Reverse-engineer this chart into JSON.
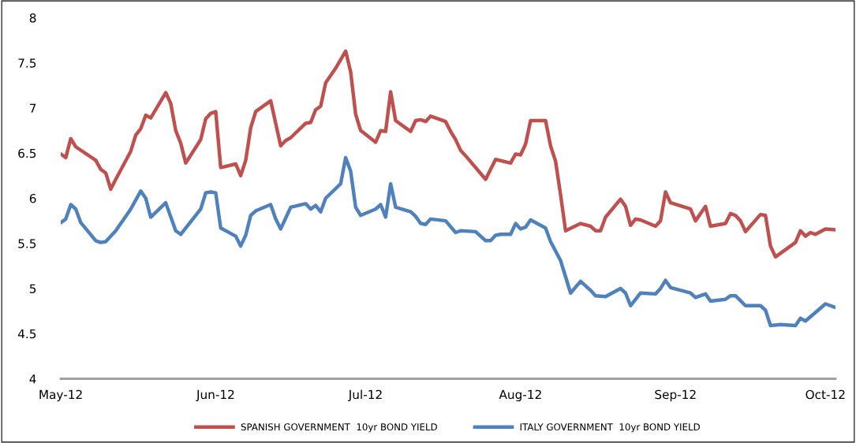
{
  "chart_data": {
    "type": "line",
    "ylim": [
      4,
      8
    ],
    "yticks": [
      4,
      4.5,
      5,
      5.5,
      6,
      6.5,
      7,
      7.5,
      8
    ],
    "xlim": [
      "2012-05-01",
      "2012-10-03"
    ],
    "xticks": [
      {
        "value": "2012-05-01",
        "label": "May-12"
      },
      {
        "value": "2012-06-01",
        "label": "Jun-12"
      },
      {
        "value": "2012-07-01",
        "label": "Jul-12"
      },
      {
        "value": "2012-08-01",
        "label": "Aug-12"
      },
      {
        "value": "2012-09-01",
        "label": "Sep-12"
      },
      {
        "value": "2012-10-01",
        "label": "Oct-12"
      }
    ],
    "grid": false,
    "legend": "bottom",
    "marker": "none",
    "line_style": "solid",
    "series": [
      {
        "name": "SPANISH GOVERNMENT  10yr BOND YIELD",
        "color": "#c0504d",
        "x": [
          "2012-05-01",
          "2012-05-02",
          "2012-05-03",
          "2012-05-04",
          "2012-05-08",
          "2012-05-09",
          "2012-05-10",
          "2012-05-11",
          "2012-05-12",
          "2012-05-15",
          "2012-05-16",
          "2012-05-17",
          "2012-05-18",
          "2012-05-19",
          "2012-05-22",
          "2012-05-23",
          "2012-05-24",
          "2012-05-25",
          "2012-05-26",
          "2012-05-29",
          "2012-05-30",
          "2012-05-31",
          "2012-06-01",
          "2012-06-02",
          "2012-06-05",
          "2012-06-06",
          "2012-06-07",
          "2012-06-08",
          "2012-06-09",
          "2012-06-12",
          "2012-06-14",
          "2012-06-15",
          "2012-06-16",
          "2012-06-19",
          "2012-06-20",
          "2012-06-21",
          "2012-06-22",
          "2012-06-23",
          "2012-06-25",
          "2012-06-27",
          "2012-06-28",
          "2012-06-29",
          "2012-06-30",
          "2012-07-03",
          "2012-07-04",
          "2012-07-05",
          "2012-07-06",
          "2012-07-07",
          "2012-07-10",
          "2012-07-11",
          "2012-07-12",
          "2012-07-13",
          "2012-07-14",
          "2012-07-17",
          "2012-07-18",
          "2012-07-19",
          "2012-07-20",
          "2012-07-21",
          "2012-07-25",
          "2012-07-27",
          "2012-07-30",
          "2012-07-31",
          "2012-08-01",
          "2012-08-02",
          "2012-08-03",
          "2012-08-06",
          "2012-08-07",
          "2012-08-08",
          "2012-08-09",
          "2012-08-10",
          "2012-08-13",
          "2012-08-15",
          "2012-08-16",
          "2012-08-17",
          "2012-08-18",
          "2012-08-21",
          "2012-08-22",
          "2012-08-23",
          "2012-08-24",
          "2012-08-25",
          "2012-08-28",
          "2012-08-29",
          "2012-08-30",
          "2012-08-31",
          "2012-09-04",
          "2012-09-05",
          "2012-09-07",
          "2012-09-08",
          "2012-09-11",
          "2012-09-12",
          "2012-09-13",
          "2012-09-14",
          "2012-09-15",
          "2012-09-18",
          "2012-09-19",
          "2012-09-20",
          "2012-09-21",
          "2012-09-25",
          "2012-09-26",
          "2012-09-27",
          "2012-09-28",
          "2012-09-29",
          "2012-10-01",
          "2012-10-03"
        ],
        "values": [
          6.49,
          6.45,
          6.66,
          6.57,
          6.42,
          6.32,
          6.28,
          6.1,
          6.21,
          6.52,
          6.7,
          6.77,
          6.92,
          6.89,
          7.17,
          7.05,
          6.75,
          6.61,
          6.39,
          6.65,
          6.88,
          6.94,
          6.96,
          6.34,
          6.38,
          6.25,
          6.42,
          6.78,
          6.96,
          7.08,
          6.58,
          6.64,
          6.67,
          6.83,
          6.84,
          6.98,
          7.02,
          7.28,
          7.44,
          7.63,
          7.4,
          6.93,
          6.75,
          6.62,
          6.75,
          6.74,
          7.18,
          6.86,
          6.74,
          6.86,
          6.87,
          6.85,
          6.91,
          6.85,
          6.74,
          6.65,
          6.53,
          6.47,
          6.21,
          6.43,
          6.39,
          6.49,
          6.48,
          6.6,
          6.86,
          6.86,
          6.58,
          6.41,
          6.04,
          5.64,
          5.72,
          5.69,
          5.64,
          5.64,
          5.79,
          5.99,
          5.91,
          5.7,
          5.77,
          5.76,
          5.69,
          5.75,
          6.07,
          5.95,
          5.88,
          5.75,
          5.91,
          5.69,
          5.72,
          5.83,
          5.81,
          5.75,
          5.63,
          5.82,
          5.81,
          5.47,
          5.35,
          5.51,
          5.64,
          5.58,
          5.62,
          5.6,
          5.66,
          5.65
        ]
      },
      {
        "name": "ITALY GOVERNMENT  10yr BOND YIELD",
        "color": "#4f81bd",
        "x": [
          "2012-05-01",
          "2012-05-02",
          "2012-05-03",
          "2012-05-04",
          "2012-05-05",
          "2012-05-08",
          "2012-05-09",
          "2012-05-10",
          "2012-05-12",
          "2012-05-15",
          "2012-05-17",
          "2012-05-18",
          "2012-05-19",
          "2012-05-22",
          "2012-05-24",
          "2012-05-25",
          "2012-05-29",
          "2012-05-30",
          "2012-05-31",
          "2012-06-01",
          "2012-06-02",
          "2012-06-05",
          "2012-06-06",
          "2012-06-07",
          "2012-06-08",
          "2012-06-09",
          "2012-06-12",
          "2012-06-13",
          "2012-06-14",
          "2012-06-16",
          "2012-06-19",
          "2012-06-20",
          "2012-06-21",
          "2012-06-22",
          "2012-06-23",
          "2012-06-26",
          "2012-06-27",
          "2012-06-28",
          "2012-06-29",
          "2012-06-30",
          "2012-07-03",
          "2012-07-04",
          "2012-07-05",
          "2012-07-06",
          "2012-07-07",
          "2012-07-10",
          "2012-07-11",
          "2012-07-12",
          "2012-07-13",
          "2012-07-14",
          "2012-07-17",
          "2012-07-19",
          "2012-07-20",
          "2012-07-23",
          "2012-07-25",
          "2012-07-26",
          "2012-07-27",
          "2012-07-28",
          "2012-07-30",
          "2012-07-31",
          "2012-08-01",
          "2012-08-02",
          "2012-08-03",
          "2012-08-06",
          "2012-08-07",
          "2012-08-09",
          "2012-08-11",
          "2012-08-13",
          "2012-08-15",
          "2012-08-16",
          "2012-08-18",
          "2012-08-21",
          "2012-08-22",
          "2012-08-23",
          "2012-08-25",
          "2012-08-28",
          "2012-08-29",
          "2012-08-30",
          "2012-08-31",
          "2012-09-04",
          "2012-09-05",
          "2012-09-07",
          "2012-09-08",
          "2012-09-11",
          "2012-09-12",
          "2012-09-13",
          "2012-09-15",
          "2012-09-18",
          "2012-09-19",
          "2012-09-20",
          "2012-09-22",
          "2012-09-25",
          "2012-09-26",
          "2012-09-27",
          "2012-10-01",
          "2012-10-03"
        ],
        "values": [
          5.73,
          5.77,
          5.93,
          5.88,
          5.73,
          5.53,
          5.51,
          5.52,
          5.64,
          5.88,
          6.08,
          6.0,
          5.79,
          5.95,
          5.64,
          5.6,
          5.88,
          6.06,
          6.07,
          6.06,
          5.67,
          5.58,
          5.47,
          5.59,
          5.81,
          5.86,
          5.93,
          5.77,
          5.66,
          5.9,
          5.94,
          5.88,
          5.92,
          5.85,
          6.0,
          6.16,
          6.45,
          6.3,
          5.9,
          5.81,
          5.88,
          5.93,
          5.79,
          6.16,
          5.9,
          5.85,
          5.8,
          5.72,
          5.71,
          5.77,
          5.75,
          5.62,
          5.64,
          5.63,
          5.53,
          5.53,
          5.59,
          5.6,
          5.6,
          5.72,
          5.66,
          5.68,
          5.76,
          5.67,
          5.52,
          5.31,
          4.95,
          5.08,
          4.98,
          4.92,
          4.91,
          5.0,
          4.95,
          4.81,
          4.95,
          4.94,
          5.0,
          5.09,
          5.01,
          4.95,
          4.9,
          4.94,
          4.86,
          4.88,
          4.92,
          4.92,
          4.81,
          4.81,
          4.76,
          4.59,
          4.6,
          4.59,
          4.67,
          4.64,
          4.83,
          4.79
        ]
      }
    ]
  }
}
